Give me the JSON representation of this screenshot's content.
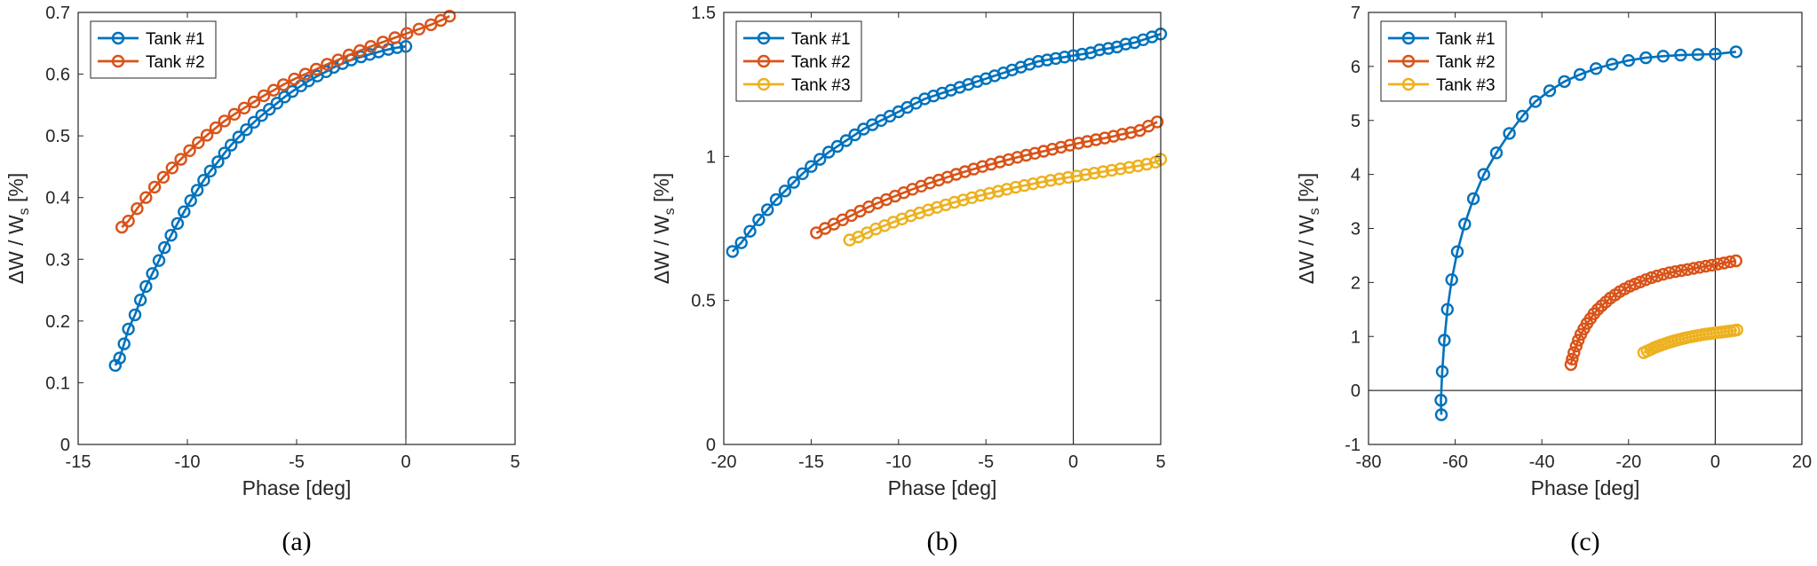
{
  "chart_data": [
    {
      "type": "line",
      "panel_label": "(a)",
      "xlabel": "Phase [deg]",
      "ylabel": "ΔW / W",
      "ylabel_sub": "s",
      "ylabel_unit": " [%]",
      "xlim": [
        -15,
        5
      ],
      "ylim": [
        0,
        0.7
      ],
      "xticks": [
        -15,
        -10,
        -5,
        0,
        5
      ],
      "yticks": [
        0,
        0.1,
        0.2,
        0.3,
        0.4,
        0.5,
        0.6,
        0.7
      ],
      "xtick_labels": [
        "-15",
        "-10",
        "-5",
        "0",
        "5"
      ],
      "ytick_labels": [
        "0",
        "0.1",
        "0.2",
        "0.3",
        "0.4",
        "0.5",
        "0.6",
        "0.7"
      ],
      "ref_vline": 0,
      "legend": "top-left",
      "series": [
        {
          "name": "Tank #1",
          "color": "#0072BD",
          "x": [
            -13.3,
            -13.1,
            -12.9,
            -12.7,
            -12.4,
            -12.15,
            -11.9,
            -11.6,
            -11.3,
            -11.05,
            -10.75,
            -10.45,
            -10.15,
            -9.85,
            -9.55,
            -9.25,
            -8.95,
            -8.6,
            -8.3,
            -8.0,
            -7.65,
            -7.3,
            -6.95,
            -6.6,
            -6.25,
            -5.9,
            -5.55,
            -5.2,
            -4.8,
            -4.45,
            -4.05,
            -3.65,
            -3.3,
            -2.9,
            -2.5,
            -2.05,
            -1.65,
            -1.25,
            -0.8,
            -0.4,
            0.0
          ],
          "y": [
            0.128,
            0.14,
            0.163,
            0.187,
            0.21,
            0.234,
            0.256,
            0.277,
            0.298,
            0.319,
            0.339,
            0.358,
            0.377,
            0.395,
            0.412,
            0.428,
            0.443,
            0.458,
            0.472,
            0.485,
            0.498,
            0.51,
            0.522,
            0.533,
            0.543,
            0.553,
            0.563,
            0.572,
            0.581,
            0.589,
            0.597,
            0.604,
            0.611,
            0.617,
            0.623,
            0.628,
            0.632,
            0.636,
            0.64,
            0.643,
            0.645
          ]
        },
        {
          "name": "Tank #2",
          "color": "#D95319",
          "x": [
            -13.0,
            -12.7,
            -12.3,
            -11.9,
            -11.5,
            -11.1,
            -10.7,
            -10.3,
            -9.9,
            -9.5,
            -9.1,
            -8.7,
            -8.3,
            -7.85,
            -7.4,
            -6.95,
            -6.5,
            -6.05,
            -5.6,
            -5.1,
            -4.6,
            -4.1,
            -3.6,
            -3.1,
            -2.6,
            -2.1,
            -1.6,
            -1.05,
            -0.5,
            0.05,
            0.6,
            1.15,
            1.6,
            2.0
          ],
          "y": [
            0.352,
            0.362,
            0.382,
            0.4,
            0.417,
            0.433,
            0.448,
            0.462,
            0.476,
            0.489,
            0.501,
            0.513,
            0.524,
            0.535,
            0.545,
            0.555,
            0.565,
            0.574,
            0.583,
            0.592,
            0.6,
            0.608,
            0.616,
            0.623,
            0.631,
            0.638,
            0.645,
            0.652,
            0.659,
            0.666,
            0.673,
            0.68,
            0.687,
            0.694
          ]
        }
      ]
    },
    {
      "type": "line",
      "panel_label": "(b)",
      "xlabel": "Phase [deg]",
      "ylabel": "ΔW / W",
      "ylabel_sub": "s",
      "ylabel_unit": " [%]",
      "xlim": [
        -20,
        5
      ],
      "ylim": [
        0,
        1.5
      ],
      "xticks": [
        -20,
        -15,
        -10,
        -5,
        0,
        5
      ],
      "yticks": [
        0,
        0.5,
        1,
        1.5
      ],
      "xtick_labels": [
        "-20",
        "-15",
        "-10",
        "-5",
        "0",
        "5"
      ],
      "ytick_labels": [
        "0",
        "0.5",
        "1",
        "1.5"
      ],
      "ref_vline": 0,
      "legend": "top-left",
      "series": [
        {
          "name": "Tank #1",
          "color": "#0072BD",
          "x": [
            -19.5,
            -19.0,
            -18.5,
            -18.0,
            -17.5,
            -17.0,
            -16.5,
            -16.0,
            -15.5,
            -15.0,
            -14.5,
            -14.0,
            -13.5,
            -13.0,
            -12.5,
            -12.0,
            -11.5,
            -11.0,
            -10.5,
            -10.0,
            -9.5,
            -9.0,
            -8.5,
            -8.0,
            -7.5,
            -7.0,
            -6.5,
            -6.0,
            -5.5,
            -5.0,
            -4.5,
            -4.0,
            -3.5,
            -3.0,
            -2.5,
            -2.0,
            -1.5,
            -1.0,
            -0.5,
            0.0,
            0.5,
            1.0,
            1.5,
            2.0,
            2.5,
            3.0,
            3.5,
            4.0,
            4.5,
            5.0
          ],
          "y": [
            0.67,
            0.7,
            0.74,
            0.78,
            0.815,
            0.85,
            0.88,
            0.91,
            0.94,
            0.965,
            0.99,
            1.015,
            1.035,
            1.055,
            1.075,
            1.095,
            1.11,
            1.125,
            1.14,
            1.155,
            1.17,
            1.185,
            1.2,
            1.21,
            1.22,
            1.23,
            1.24,
            1.25,
            1.26,
            1.27,
            1.28,
            1.29,
            1.3,
            1.31,
            1.32,
            1.33,
            1.335,
            1.34,
            1.345,
            1.35,
            1.355,
            1.36,
            1.37,
            1.375,
            1.38,
            1.39,
            1.395,
            1.405,
            1.415,
            1.425
          ]
        },
        {
          "name": "Tank #2",
          "color": "#D95319",
          "x": [
            -14.7,
            -14.2,
            -13.7,
            -13.2,
            -12.7,
            -12.2,
            -11.7,
            -11.2,
            -10.7,
            -10.2,
            -9.7,
            -9.2,
            -8.7,
            -8.2,
            -7.7,
            -7.2,
            -6.7,
            -6.2,
            -5.7,
            -5.2,
            -4.7,
            -4.2,
            -3.7,
            -3.2,
            -2.7,
            -2.2,
            -1.7,
            -1.2,
            -0.7,
            -0.2,
            0.3,
            0.8,
            1.3,
            1.8,
            2.3,
            2.8,
            3.3,
            3.8,
            4.3,
            4.8
          ],
          "y": [
            0.735,
            0.75,
            0.765,
            0.78,
            0.795,
            0.81,
            0.825,
            0.838,
            0.85,
            0.862,
            0.874,
            0.886,
            0.897,
            0.908,
            0.918,
            0.928,
            0.938,
            0.947,
            0.956,
            0.965,
            0.973,
            0.981,
            0.989,
            0.997,
            1.004,
            1.011,
            1.018,
            1.025,
            1.032,
            1.039,
            1.046,
            1.052,
            1.058,
            1.064,
            1.07,
            1.077,
            1.083,
            1.09,
            1.105,
            1.12
          ]
        },
        {
          "name": "Tank #3",
          "color": "#EDB120",
          "x": [
            -12.8,
            -12.3,
            -11.8,
            -11.3,
            -10.8,
            -10.3,
            -9.8,
            -9.3,
            -8.8,
            -8.3,
            -7.8,
            -7.3,
            -6.8,
            -6.3,
            -5.8,
            -5.3,
            -4.8,
            -4.3,
            -3.8,
            -3.3,
            -2.8,
            -2.3,
            -1.8,
            -1.3,
            -0.8,
            -0.3,
            0.2,
            0.7,
            1.2,
            1.7,
            2.2,
            2.7,
            3.2,
            3.7,
            4.2,
            4.7,
            5.0
          ],
          "y": [
            0.71,
            0.72,
            0.735,
            0.748,
            0.76,
            0.772,
            0.783,
            0.794,
            0.804,
            0.814,
            0.823,
            0.832,
            0.841,
            0.849,
            0.857,
            0.865,
            0.872,
            0.879,
            0.886,
            0.893,
            0.899,
            0.905,
            0.911,
            0.917,
            0.922,
            0.927,
            0.932,
            0.937,
            0.942,
            0.947,
            0.952,
            0.957,
            0.962,
            0.967,
            0.973,
            0.98,
            0.99
          ]
        }
      ]
    },
    {
      "type": "line",
      "panel_label": "(c)",
      "xlabel": "Phase [deg]",
      "ylabel": "ΔW / W",
      "ylabel_sub": "s",
      "ylabel_unit": " [%]",
      "xlim": [
        -80,
        20
      ],
      "ylim": [
        -1,
        7
      ],
      "xticks": [
        -80,
        -60,
        -40,
        -20,
        0,
        20
      ],
      "yticks": [
        -1,
        0,
        1,
        2,
        3,
        4,
        5,
        6,
        7
      ],
      "xtick_labels": [
        "-80",
        "-60",
        "-40",
        "-20",
        "0",
        "20"
      ],
      "ytick_labels": [
        "-1",
        "0",
        "1",
        "2",
        "3",
        "4",
        "5",
        "6",
        "7"
      ],
      "ref_vline": 0,
      "ref_hline": 0,
      "legend": "top-left",
      "series": [
        {
          "name": "Tank #1",
          "color": "#0072BD",
          "x": [
            -63.2,
            -63.3,
            -63.0,
            -62.5,
            -61.8,
            -60.8,
            -59.5,
            -57.8,
            -55.8,
            -53.4,
            -50.5,
            -47.5,
            -44.5,
            -41.5,
            -38.2,
            -34.8,
            -31.2,
            -27.5,
            -23.8,
            -20.0,
            -16.0,
            -12.0,
            -8.0,
            -4.0,
            0.0,
            4.8
          ],
          "y": [
            -0.45,
            -0.18,
            0.35,
            0.93,
            1.5,
            2.05,
            2.57,
            3.08,
            3.55,
            4.0,
            4.4,
            4.76,
            5.08,
            5.35,
            5.55,
            5.72,
            5.85,
            5.96,
            6.04,
            6.11,
            6.16,
            6.19,
            6.21,
            6.22,
            6.23,
            6.27
          ]
        },
        {
          "name": "Tank #2",
          "color": "#D95319",
          "x": [
            -33.3,
            -33.0,
            -32.6,
            -32.1,
            -31.6,
            -31.0,
            -30.3,
            -29.6,
            -28.8,
            -28.0,
            -27.1,
            -26.2,
            -25.2,
            -24.2,
            -23.1,
            -22.0,
            -20.9,
            -19.7,
            -18.5,
            -17.3,
            -16.0,
            -14.7,
            -13.4,
            -12.0,
            -10.6,
            -9.2,
            -7.8,
            -6.4,
            -5.0,
            -3.6,
            -2.2,
            -0.8,
            0.6,
            2.0,
            3.4,
            4.8
          ],
          "y": [
            0.48,
            0.58,
            0.7,
            0.82,
            0.93,
            1.04,
            1.14,
            1.24,
            1.33,
            1.42,
            1.5,
            1.57,
            1.64,
            1.71,
            1.77,
            1.83,
            1.88,
            1.93,
            1.97,
            2.01,
            2.05,
            2.09,
            2.12,
            2.15,
            2.18,
            2.2,
            2.22,
            2.24,
            2.26,
            2.28,
            2.3,
            2.32,
            2.34,
            2.36,
            2.38,
            2.4
          ]
        },
        {
          "name": "Tank #3",
          "color": "#EDB120",
          "x": [
            -16.5,
            -15.7,
            -14.9,
            -14.1,
            -13.3,
            -12.5,
            -11.7,
            -10.9,
            -10.1,
            -9.3,
            -8.5,
            -7.7,
            -6.9,
            -6.1,
            -5.3,
            -4.5,
            -3.7,
            -2.9,
            -2.1,
            -1.3,
            -0.5,
            0.3,
            1.1,
            1.9,
            2.7,
            3.5,
            4.3,
            5.0
          ],
          "y": [
            0.7,
            0.73,
            0.76,
            0.79,
            0.815,
            0.84,
            0.862,
            0.884,
            0.904,
            0.922,
            0.94,
            0.956,
            0.971,
            0.985,
            0.998,
            1.01,
            1.022,
            1.033,
            1.043,
            1.052,
            1.061,
            1.069,
            1.077,
            1.085,
            1.093,
            1.101,
            1.11,
            1.12
          ]
        }
      ]
    }
  ]
}
